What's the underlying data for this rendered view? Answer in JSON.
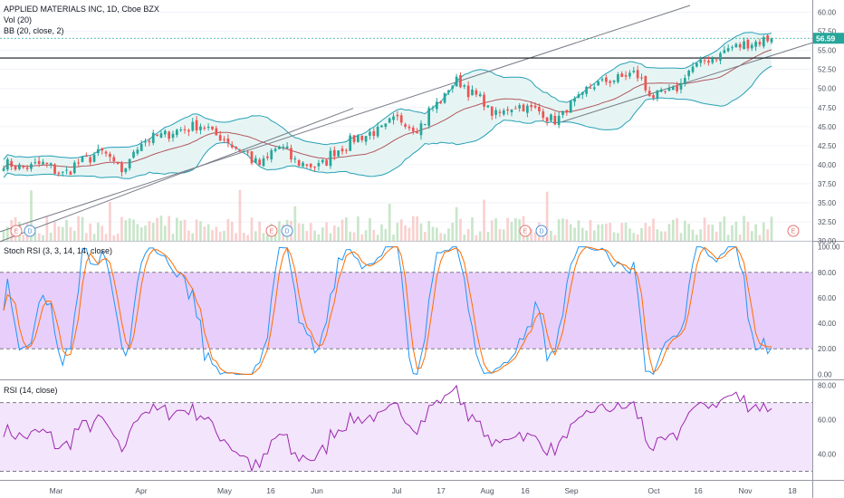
{
  "chart_data": {
    "type": "candlestick",
    "symbol_line": "APPLIED MATERIALS INC, 1D, Cboe BZX",
    "volume_label": "Vol (20)",
    "bb_label": "BB (20, close, 2)",
    "stoch_label": "Stoch RSI (3, 3, 14, 14, close)",
    "rsi_label": "RSI (14, close)",
    "last_price": "56.59",
    "price_axis": {
      "ticks": [
        "60.00",
        "57.50",
        "55.00",
        "52.50",
        "50.00",
        "47.50",
        "45.00",
        "42.50",
        "40.00",
        "37.50",
        "35.00",
        "32.50",
        "30.00"
      ],
      "range": [
        30,
        60.9
      ]
    },
    "stoch_axis": {
      "ticks": [
        "100.00",
        "80.00",
        "60.00",
        "40.00",
        "20.00",
        "0.00"
      ],
      "range": [
        -4,
        104
      ]
    },
    "rsi_axis": {
      "ticks": [
        "80.00",
        "60.00",
        "40.00"
      ],
      "range": [
        25,
        83
      ]
    },
    "x_axis_labels": [
      "Mar",
      "Apr",
      "May",
      "16",
      "Jun",
      "Jul",
      "17",
      "Aug",
      "16",
      "Sep",
      "Oct",
      "16",
      "Nov",
      "18"
    ],
    "events": [
      "E",
      "D",
      "E",
      "D",
      "E",
      "D",
      "E"
    ],
    "colors": {
      "up": "#26a69a",
      "down": "#ef5350",
      "bb_fill": "#e0f2f1",
      "bb_band": "#26a0b5",
      "bb_basis": "#b2585f",
      "stoch_fill": "#e6c9fa",
      "rsi_fill": "#f3e5fb"
    },
    "close_path": [
      {
        "d": "2019-02-13",
        "c": 40.2
      },
      {
        "d": "2019-02-20",
        "c": 39.6
      },
      {
        "d": "2019-02-27",
        "c": 40.1
      },
      {
        "d": "2019-03-06",
        "c": 38.8
      },
      {
        "d": "2019-03-13",
        "c": 40.5
      },
      {
        "d": "2019-03-20",
        "c": 41.6
      },
      {
        "d": "2019-03-27",
        "c": 39.2
      },
      {
        "d": "2019-04-03",
        "c": 43.0
      },
      {
        "d": "2019-04-10",
        "c": 43.8
      },
      {
        "d": "2019-04-17",
        "c": 44.6
      },
      {
        "d": "2019-04-24",
        "c": 45.2
      },
      {
        "d": "2019-05-01",
        "c": 43.6
      },
      {
        "d": "2019-05-08",
        "c": 42.0
      },
      {
        "d": "2019-05-15",
        "c": 40.0
      },
      {
        "d": "2019-05-22",
        "c": 42.4
      },
      {
        "d": "2019-05-29",
        "c": 40.2
      },
      {
        "d": "2019-06-05",
        "c": 39.8
      },
      {
        "d": "2019-06-12",
        "c": 42.0
      },
      {
        "d": "2019-06-19",
        "c": 43.6
      },
      {
        "d": "2019-06-26",
        "c": 44.4
      },
      {
        "d": "2019-07-03",
        "c": 46.0
      },
      {
        "d": "2019-07-10",
        "c": 44.8
      },
      {
        "d": "2019-07-17",
        "c": 48.0
      },
      {
        "d": "2019-07-24",
        "c": 51.0
      },
      {
        "d": "2019-07-31",
        "c": 49.0
      },
      {
        "d": "2019-08-07",
        "c": 46.5
      },
      {
        "d": "2019-08-14",
        "c": 47.8
      },
      {
        "d": "2019-08-21",
        "c": 47.2
      },
      {
        "d": "2019-08-28",
        "c": 45.8
      },
      {
        "d": "2019-09-04",
        "c": 48.2
      },
      {
        "d": "2019-09-11",
        "c": 50.5
      },
      {
        "d": "2019-09-18",
        "c": 51.2
      },
      {
        "d": "2019-09-25",
        "c": 52.0
      },
      {
        "d": "2019-10-02",
        "c": 49.0
      },
      {
        "d": "2019-10-09",
        "c": 49.6
      },
      {
        "d": "2019-10-16",
        "c": 52.8
      },
      {
        "d": "2019-10-23",
        "c": 54.0
      },
      {
        "d": "2019-10-30",
        "c": 55.4
      },
      {
        "d": "2019-11-06",
        "c": 56.0
      },
      {
        "d": "2019-11-13",
        "c": 56.59
      }
    ]
  }
}
